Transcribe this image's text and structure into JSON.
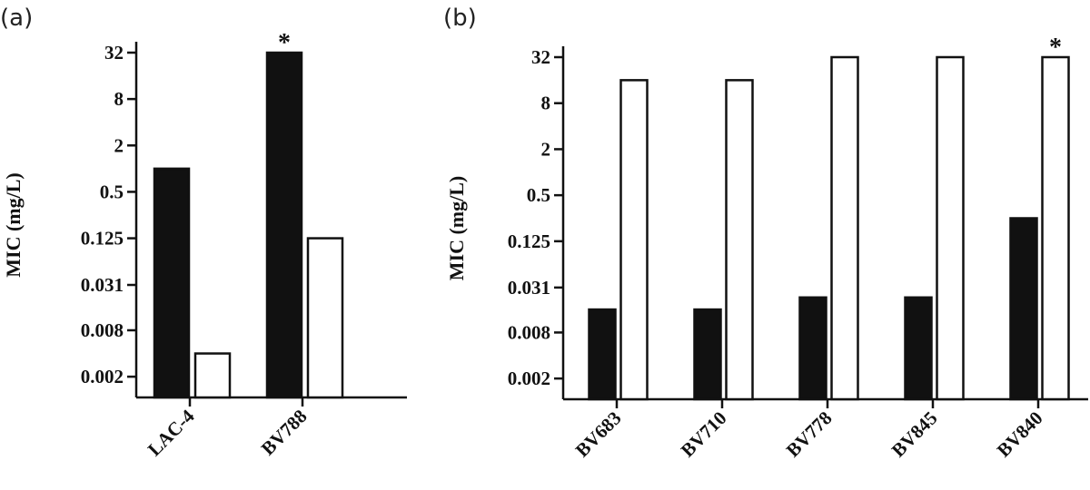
{
  "chart_data": [
    {
      "type": "bar",
      "panel_label": "(a)",
      "ylabel": "MIC (mg/L)",
      "yscale": "log2",
      "yticks": [
        "0.002",
        "0.008",
        "0.031",
        "0.125",
        "0.5",
        "2",
        "8",
        "32"
      ],
      "categories": [
        "LAC-4",
        "BV788"
      ],
      "series": [
        {
          "fill": "#111111",
          "values": [
            1,
            32
          ]
        },
        {
          "fill": "#ffffff",
          "values": [
            0.004,
            0.125
          ]
        }
      ],
      "annotations": [
        {
          "text": "*",
          "category": "BV788",
          "series": 0
        }
      ]
    },
    {
      "type": "bar",
      "panel_label": "(b)",
      "ylabel": "MIC (mg/L)",
      "yscale": "log2",
      "yticks": [
        "0.002",
        "0.008",
        "0.031",
        "0.125",
        "0.5",
        "2",
        "8",
        "32"
      ],
      "categories": [
        "BV683",
        "BV710",
        "BV778",
        "BV845",
        "BV840"
      ],
      "series": [
        {
          "fill": "#111111",
          "values": [
            0.016,
            0.016,
            0.023,
            0.023,
            0.25
          ]
        },
        {
          "fill": "#ffffff",
          "values": [
            16,
            16,
            32,
            32,
            32
          ]
        }
      ],
      "annotations": [
        {
          "text": "*",
          "category": "BV840",
          "series": 1
        }
      ]
    }
  ]
}
